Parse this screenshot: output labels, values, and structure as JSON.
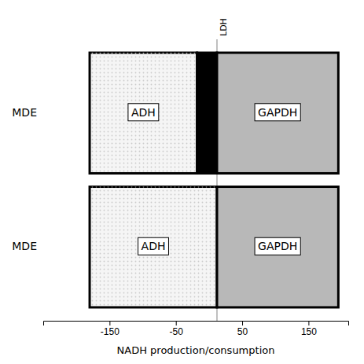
{
  "chart_data": {
    "type": "bar",
    "orientation": "horizontal",
    "xlabel": "NADH production/consumption",
    "categories": [
      "MDE",
      "MDE"
    ],
    "series": [
      {
        "name": "ADH",
        "color": "#f5f5f5",
        "values": [
          [
            -180,
            -18
          ],
          [
            -180,
            12
          ]
        ]
      },
      {
        "color": "#000000",
        "values": [
          [
            -18,
            12
          ],
          null
        ]
      },
      {
        "name": "GAPDH",
        "color": "#b8b8b8",
        "values": [
          [
            12,
            195
          ],
          [
            12,
            195
          ]
        ]
      }
    ],
    "annotations": [
      {
        "x": 12,
        "text": "LDH"
      }
    ],
    "xlim": [
      -250,
      210
    ],
    "xticks": [
      -150,
      -50,
      50,
      150
    ],
    "grid": false
  }
}
